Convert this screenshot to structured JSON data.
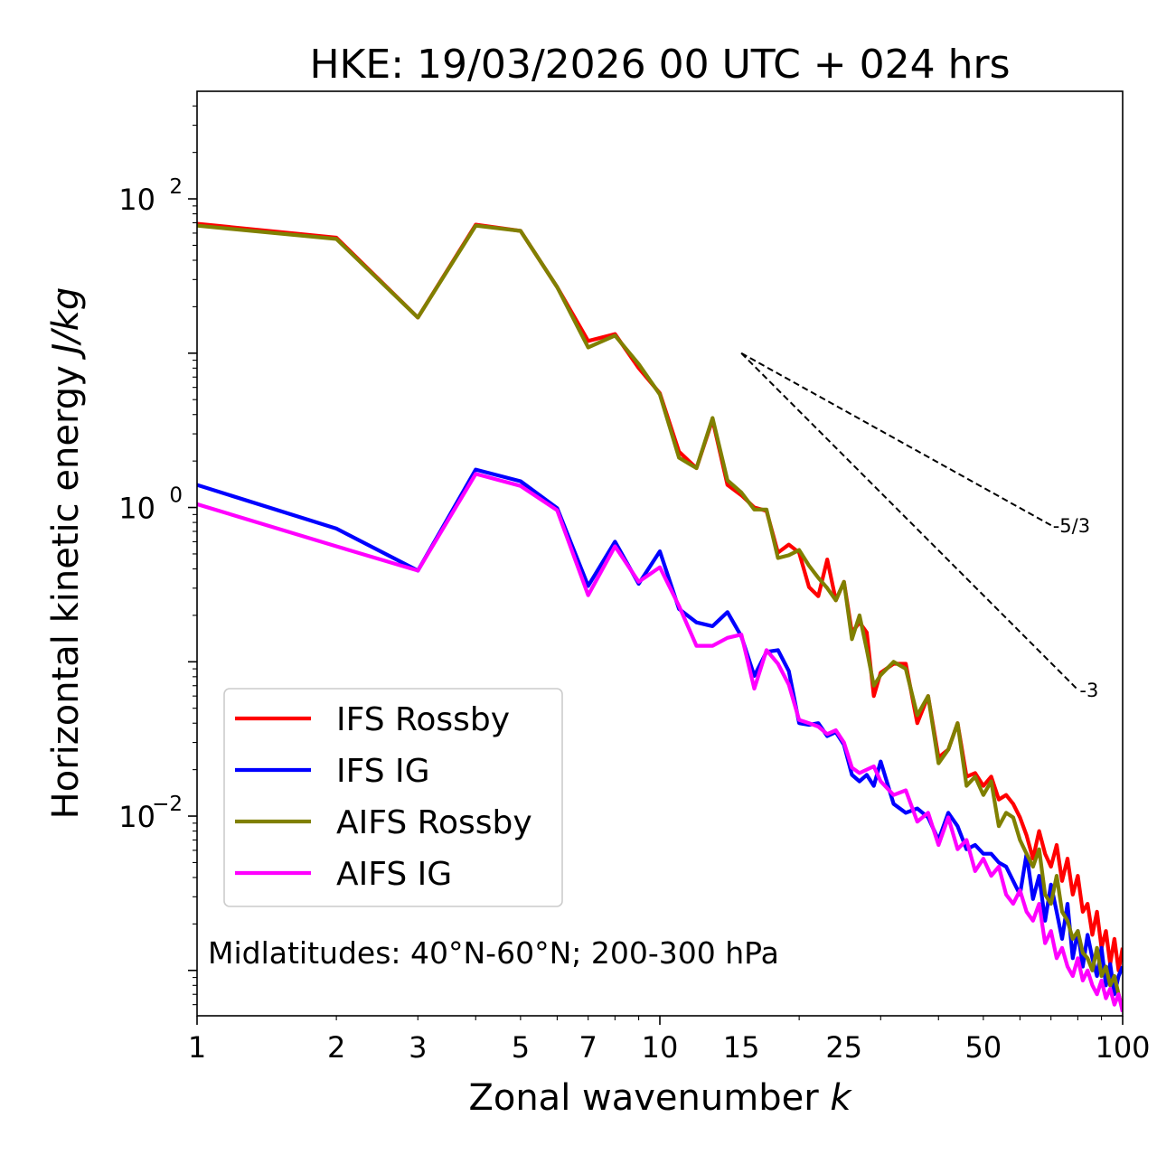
{
  "chart_data": {
    "type": "line",
    "title": "HKE: 19/03/2026 00 UTC + 024 hrs",
    "xlabel": "Zonal wavenumber",
    "xlabel_var": "k",
    "ylabel": "Horizontal kinetic energy",
    "ylabel_unit": "J/kg",
    "xscale": "log",
    "yscale": "log",
    "xlim": [
      1,
      100
    ],
    "ylim": [
      0.000508,
      498
    ],
    "x_ticks": [
      1,
      2,
      3,
      5,
      7,
      10,
      15,
      25,
      50,
      100
    ],
    "x_tick_labels": [
      "1",
      "2",
      "3",
      "5",
      "7",
      "10",
      "15",
      "25",
      "50",
      "100"
    ],
    "y_ticks": [
      0.01,
      1,
      100
    ],
    "y_tick_labels": [
      {
        "base": "10",
        "exp": "−2"
      },
      {
        "base": "10",
        "exp": "0"
      },
      {
        "base": "10",
        "exp": "2"
      }
    ],
    "annotation": "Midlatitudes: 40°N-60°N; 200-300 hPa",
    "legend_position": "lower-left",
    "x": [
      1,
      2,
      3,
      4,
      5,
      6,
      7,
      8,
      9,
      10,
      11,
      12,
      13,
      14,
      15,
      16,
      17,
      18,
      19,
      20,
      21,
      22,
      23,
      24,
      25,
      26,
      27,
      28,
      29,
      30,
      32,
      34,
      36,
      38,
      40,
      42,
      44,
      46,
      48,
      50,
      52,
      54,
      56,
      58,
      60,
      62,
      64,
      66,
      68,
      70,
      72,
      74,
      76,
      78,
      80,
      82,
      84,
      86,
      88,
      90,
      92,
      94,
      96,
      98,
      100
    ],
    "series": [
      {
        "name": "IFS Rossby",
        "color": "#ff0000",
        "values": [
          69,
          56,
          17,
          68,
          62,
          26.8,
          12,
          13.3,
          8,
          5.5,
          2.3,
          1.8,
          3.7,
          1.4,
          1.2,
          1.0,
          0.95,
          0.51,
          0.575,
          0.51,
          0.305,
          0.266,
          0.46,
          0.25,
          0.33,
          0.155,
          0.18,
          0.155,
          0.06,
          0.085,
          0.097,
          0.097,
          0.04,
          0.06,
          0.024,
          0.027,
          0.04,
          0.018,
          0.019,
          0.0157,
          0.018,
          0.0128,
          0.0137,
          0.012,
          0.0098,
          0.0075,
          0.0053,
          0.008,
          0.0057,
          0.0047,
          0.0065,
          0.0038,
          0.0053,
          0.0031,
          0.0041,
          0.0024,
          0.0027,
          0.0017,
          0.0024,
          0.0014,
          0.0018,
          0.0011,
          0.0016,
          0.001,
          0.0014
        ]
      },
      {
        "name": "IFS IG",
        "color": "#0000ff",
        "values": [
          1.4,
          0.73,
          0.39,
          1.76,
          1.48,
          0.99,
          0.31,
          0.6,
          0.32,
          0.52,
          0.22,
          0.18,
          0.17,
          0.21,
          0.146,
          0.081,
          0.116,
          0.119,
          0.087,
          0.04,
          0.039,
          0.04,
          0.033,
          0.035,
          0.029,
          0.0185,
          0.0168,
          0.0185,
          0.0157,
          0.0226,
          0.012,
          0.0105,
          0.0112,
          0.0098,
          0.007,
          0.0105,
          0.0086,
          0.0061,
          0.0065,
          0.0057,
          0.0057,
          0.005,
          0.0047,
          0.0038,
          0.0031,
          0.0057,
          0.0029,
          0.0041,
          0.0021,
          0.0036,
          0.0024,
          0.0016,
          0.0027,
          0.0012,
          0.0018,
          0.00106,
          0.0017,
          0.0012,
          0.00092,
          0.0014,
          0.0008,
          0.0011,
          0.0007,
          0.00092,
          0.00106
        ]
      },
      {
        "name": "AIFS Rossby",
        "color": "#808000",
        "values": [
          67,
          55,
          17,
          67,
          62,
          26.8,
          10.9,
          13,
          8.5,
          5.4,
          2.1,
          1.8,
          3.8,
          1.5,
          1.25,
          0.97,
          0.97,
          0.47,
          0.49,
          0.53,
          0.42,
          0.35,
          0.3,
          0.25,
          0.33,
          0.14,
          0.2,
          0.12,
          0.07,
          0.082,
          0.1,
          0.09,
          0.045,
          0.06,
          0.022,
          0.027,
          0.04,
          0.0157,
          0.018,
          0.0137,
          0.0168,
          0.0086,
          0.0105,
          0.0098,
          0.007,
          0.0057,
          0.0047,
          0.0061,
          0.0031,
          0.0027,
          0.0041,
          0.0024,
          0.0021,
          0.0016,
          0.0018,
          0.0013,
          0.0012,
          0.001,
          0.0014,
          0.00092,
          0.00106,
          0.0008,
          0.00092,
          0.0007,
          0.00056
        ]
      },
      {
        "name": "AIFS IG",
        "color": "#ff00ff",
        "values": [
          1.05,
          0.56,
          0.39,
          1.65,
          1.38,
          0.96,
          0.27,
          0.56,
          0.33,
          0.41,
          0.23,
          0.127,
          0.127,
          0.143,
          0.15,
          0.067,
          0.119,
          0.097,
          0.071,
          0.042,
          0.04,
          0.038,
          0.034,
          0.036,
          0.03,
          0.0206,
          0.019,
          0.02,
          0.021,
          0.0168,
          0.0137,
          0.0147,
          0.0092,
          0.0105,
          0.0065,
          0.0098,
          0.0061,
          0.007,
          0.0044,
          0.0053,
          0.0041,
          0.0047,
          0.0031,
          0.0027,
          0.0033,
          0.0024,
          0.0021,
          0.0027,
          0.0015,
          0.0018,
          0.0012,
          0.0014,
          0.00106,
          0.00092,
          0.0012,
          0.00086,
          0.001,
          0.0008,
          0.0007,
          0.00086,
          0.00066,
          0.00076,
          0.0006,
          0.0007,
          0.00054
        ]
      }
    ],
    "reference_lines": [
      {
        "label": "-5/3",
        "slope": -1.6667,
        "x_start": 15,
        "y_start": 10,
        "x_end": 70
      },
      {
        "label": "-3",
        "slope": -3,
        "x_start": 15,
        "y_start": 10,
        "x_end": 80
      }
    ]
  }
}
